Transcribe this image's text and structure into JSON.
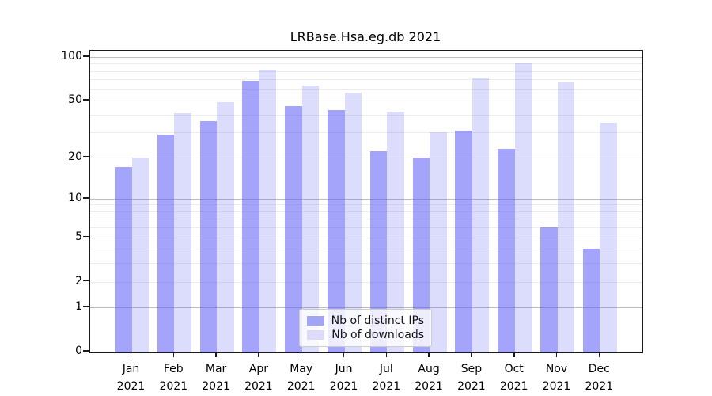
{
  "chart_data": {
    "type": "bar",
    "title": "LRBase.Hsa.eg.db 2021",
    "categories": [
      "Jan 2021",
      "Feb 2021",
      "Mar 2021",
      "Apr 2021",
      "May 2021",
      "Jun 2021",
      "Jul 2021",
      "Aug 2021",
      "Sep 2021",
      "Oct 2021",
      "Nov 2021",
      "Dec 2021"
    ],
    "series": [
      {
        "name": "Nb of distinct IPs",
        "color": "rgba(90,90,245,0.55)",
        "legend_color": "#a4a4f5",
        "values": [
          17,
          29,
          36,
          69,
          46,
          43,
          22,
          20,
          31,
          23,
          6,
          4
        ]
      },
      {
        "name": "Nb of downloads",
        "color": "rgba(90,90,245,0.21)",
        "legend_color": "#dcdcfa",
        "values": [
          20,
          41,
          49,
          82,
          64,
          57,
          42,
          30,
          71,
          91,
          67,
          35
        ]
      }
    ],
    "xlabel": "",
    "ylabel": "",
    "yscale": "log1p",
    "ylim": [
      0,
      110
    ],
    "yticks": [
      0,
      1,
      2,
      5,
      10,
      20,
      50,
      100
    ],
    "minor_gridlines": [
      2,
      3,
      4,
      5,
      6,
      7,
      8,
      9,
      20,
      30,
      40,
      50,
      60,
      70,
      80,
      90
    ],
    "major_gridlines": [
      1,
      10,
      100
    ],
    "grid": "horizontal",
    "legend_position": "lower center",
    "colors": {
      "grid_minor": "#ececec",
      "grid_major": "#bdbdbd",
      "axis": "#1a1a1a",
      "background": "#ffffff",
      "text": "#000000"
    }
  }
}
